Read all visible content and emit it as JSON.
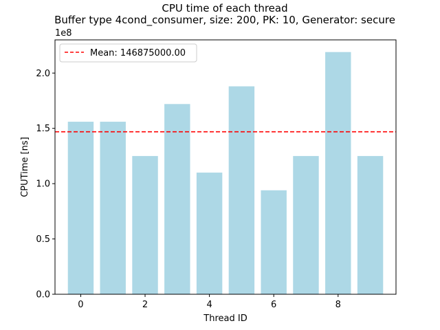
{
  "chart_data": {
    "type": "bar",
    "title": "CPU time of each thread",
    "subtitle": "Buffer type 4cond_consumer, size: 200, PK: 10, Generator: secure",
    "xlabel": "Thread ID",
    "ylabel": "CPUTime [ns]",
    "y_offset_label": "1e8",
    "x": [
      0,
      1,
      2,
      3,
      4,
      5,
      6,
      7,
      8,
      9
    ],
    "values": [
      156000000,
      156000000,
      125000000,
      172000000,
      110000000,
      188000000,
      94000000,
      125000000,
      219000000,
      125000000
    ],
    "xlim": [
      -0.8,
      9.8
    ],
    "ylim": [
      0,
      230000000
    ],
    "xticks": [
      0,
      2,
      4,
      6,
      8
    ],
    "xtick_labels": [
      "0",
      "2",
      "4",
      "6",
      "8"
    ],
    "yticks": [
      0,
      50000000,
      100000000,
      150000000,
      200000000
    ],
    "ytick_labels": [
      "0.0",
      "0.5",
      "1.0",
      "1.5",
      "2.0"
    ],
    "bar_color": "#add8e6",
    "mean_line": {
      "value": 146875000,
      "label": "Mean: 146875000.00",
      "color": "#ff0000",
      "style": "dashed"
    },
    "legend_position": "top-left",
    "grid": false
  }
}
